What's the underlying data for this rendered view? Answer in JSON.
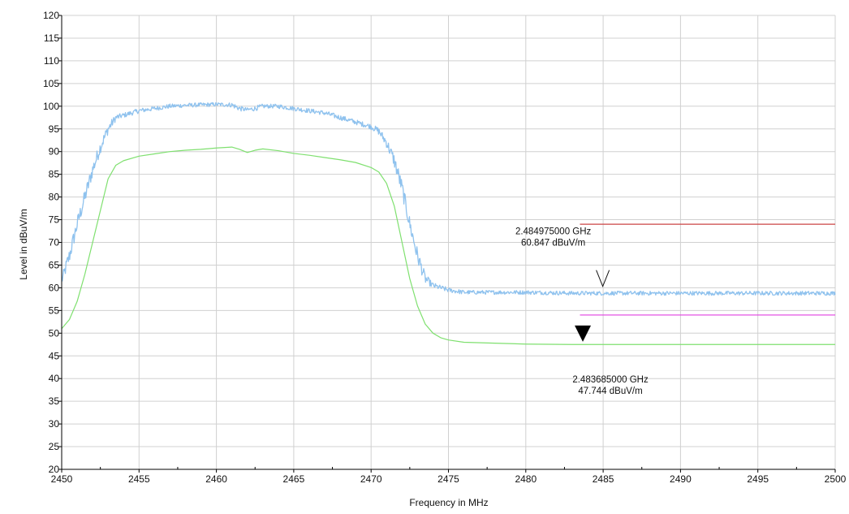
{
  "chart_data": {
    "type": "line",
    "title": "",
    "xlabel": "Frequency in MHz",
    "ylabel": "Level in dBuV/m",
    "xlim": [
      2450,
      2500
    ],
    "ylim": [
      20,
      120
    ],
    "grid": true,
    "x_ticks": [
      2450,
      2455,
      2460,
      2465,
      2470,
      2475,
      2480,
      2485,
      2490,
      2495,
      2500
    ],
    "y_ticks": [
      20,
      25,
      30,
      35,
      40,
      45,
      50,
      55,
      60,
      65,
      70,
      75,
      80,
      85,
      90,
      95,
      100,
      105,
      110,
      115,
      120
    ],
    "series": [
      {
        "color": "#8fc2ee",
        "style": "noisy",
        "x": [
          2450,
          2450.5,
          2451,
          2451.5,
          2452,
          2452.5,
          2453,
          2453.5,
          2454,
          2455,
          2456,
          2457,
          2458,
          2459,
          2460,
          2461,
          2461.5,
          2462,
          2462.5,
          2463,
          2464,
          2465,
          2466,
          2467,
          2468,
          2469,
          2470,
          2470.5,
          2471,
          2471.5,
          2472,
          2472.5,
          2473,
          2473.5,
          2474,
          2474.5,
          2475,
          2476,
          2478,
          2480,
          2483,
          2485,
          2488,
          2490,
          2495,
          2500
        ],
        "values": [
          61.5,
          67,
          74,
          80,
          86,
          91,
          95,
          97.5,
          98,
          99,
          99.5,
          100,
          100.2,
          100.3,
          100.4,
          100.3,
          99.5,
          99.2,
          99.5,
          100,
          100,
          99.5,
          99,
          98.5,
          97.5,
          96.5,
          95.5,
          94.5,
          92,
          88,
          82,
          74,
          67,
          62,
          60.5,
          60,
          59.5,
          59,
          59,
          59,
          58.8,
          58.8,
          58.8,
          58.8,
          58.8,
          58.8
        ]
      },
      {
        "color": "#7fe06f",
        "style": "smooth",
        "x": [
          2450,
          2450.5,
          2451,
          2451.5,
          2452,
          2452.5,
          2453,
          2453.5,
          2454,
          2455,
          2456,
          2457,
          2458,
          2459,
          2460,
          2461,
          2461.5,
          2462,
          2462.5,
          2463,
          2464,
          2465,
          2466,
          2467,
          2468,
          2469,
          2470,
          2470.5,
          2471,
          2471.5,
          2472,
          2472.5,
          2473,
          2473.5,
          2474,
          2474.5,
          2475,
          2476,
          2478,
          2480,
          2483,
          2485,
          2490,
          2495,
          2500
        ],
        "values": [
          51,
          53,
          57,
          63,
          70,
          77,
          84,
          87,
          88,
          89,
          89.5,
          90,
          90.3,
          90.5,
          90.8,
          91,
          90.5,
          89.8,
          90.3,
          90.6,
          90.2,
          89.6,
          89.2,
          88.7,
          88.2,
          87.6,
          86.5,
          85.5,
          83,
          78,
          70,
          62,
          56,
          52,
          50,
          49,
          48.5,
          48,
          47.8,
          47.6,
          47.5,
          47.5,
          47.5,
          47.5,
          47.5
        ]
      }
    ],
    "limit_lines": [
      {
        "color": "#cc4444",
        "x": [
          2483.5,
          2500
        ],
        "value": 74
      },
      {
        "color": "#e040e0",
        "x": [
          2483.5,
          2500
        ],
        "value": 54
      }
    ],
    "markers": [
      {
        "kind": "open",
        "x": 2484.975,
        "y": 60.847,
        "text_freq": "2.484975000 GHz",
        "text_level": "60.847 dBuV/m",
        "label_position": "above"
      },
      {
        "kind": "filled",
        "x": 2483.685,
        "y": 47.744,
        "text_freq": "2.483685000 GHz",
        "text_level": "47.744 dBuV/m",
        "label_position": "below"
      }
    ]
  }
}
